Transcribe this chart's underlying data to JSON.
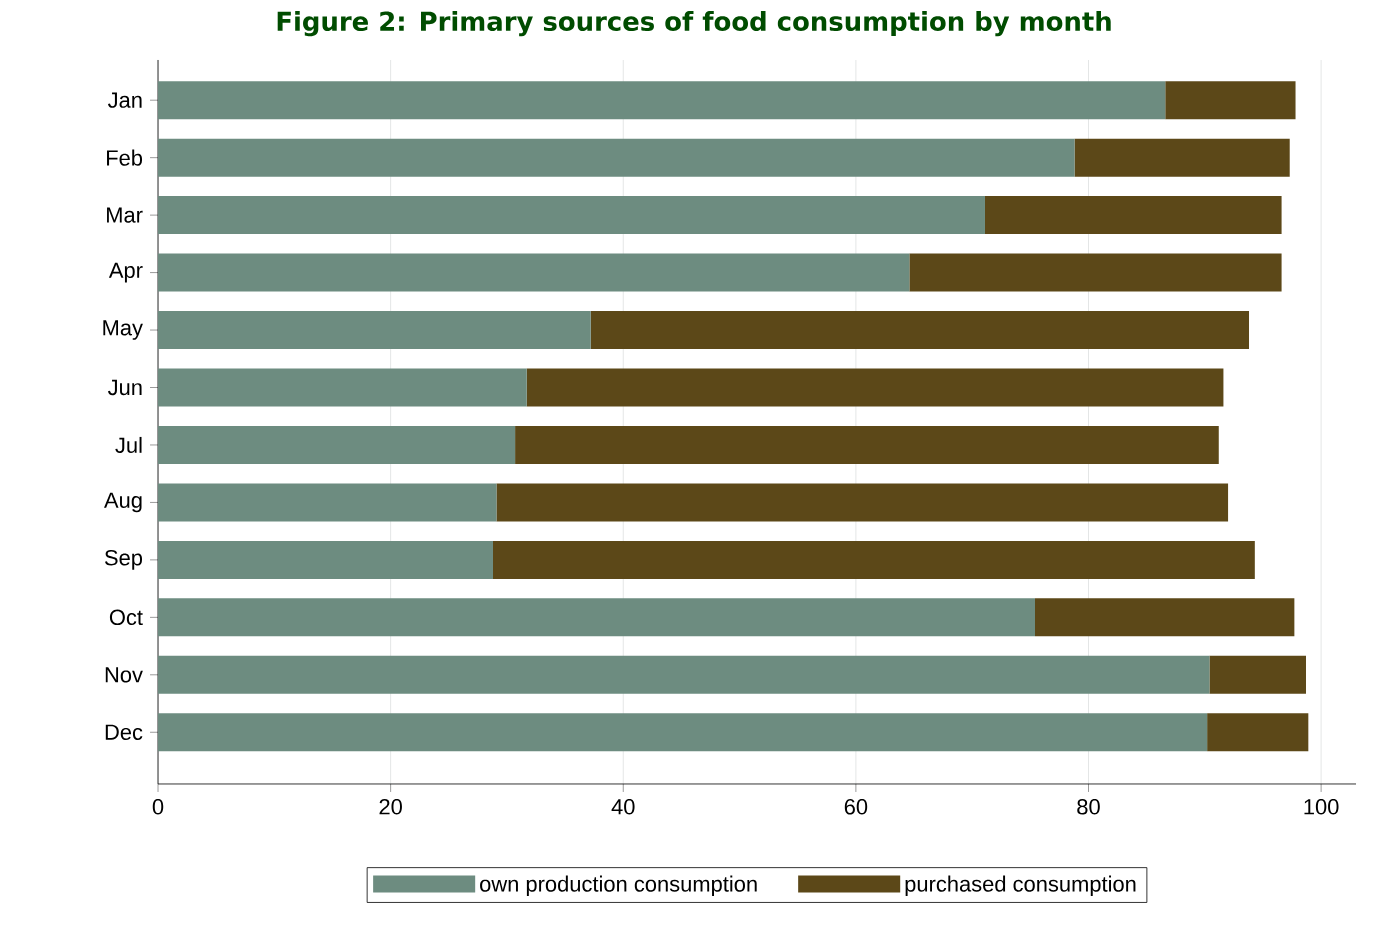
{
  "chart_data": {
    "type": "bar",
    "orientation": "horizontal",
    "stacked": true,
    "title": "Figure 2: Primary sources of food consumption by month",
    "categories": [
      "Jan",
      "Feb",
      "Mar",
      "Apr",
      "May",
      "Jun",
      "Jul",
      "Aug",
      "Sep",
      "Oct",
      "Nov",
      "Dec"
    ],
    "series": [
      {
        "name": "own production consumption",
        "color": "#6d8c80",
        "values": [
          86.6,
          78.8,
          71.1,
          64.6,
          37.2,
          31.7,
          30.7,
          29.1,
          28.8,
          75.4,
          90.4,
          90.2
        ]
      },
      {
        "name": "purchased consumption",
        "color": "#5c4818",
        "values": [
          11.2,
          18.5,
          25.5,
          32.0,
          56.6,
          59.9,
          60.5,
          62.9,
          65.5,
          22.3,
          8.3,
          8.7
        ]
      }
    ],
    "xlim": [
      0,
      103
    ],
    "xticks": [
      0,
      20,
      40,
      60,
      80,
      100
    ],
    "grid": "x",
    "legend": "bottom"
  }
}
